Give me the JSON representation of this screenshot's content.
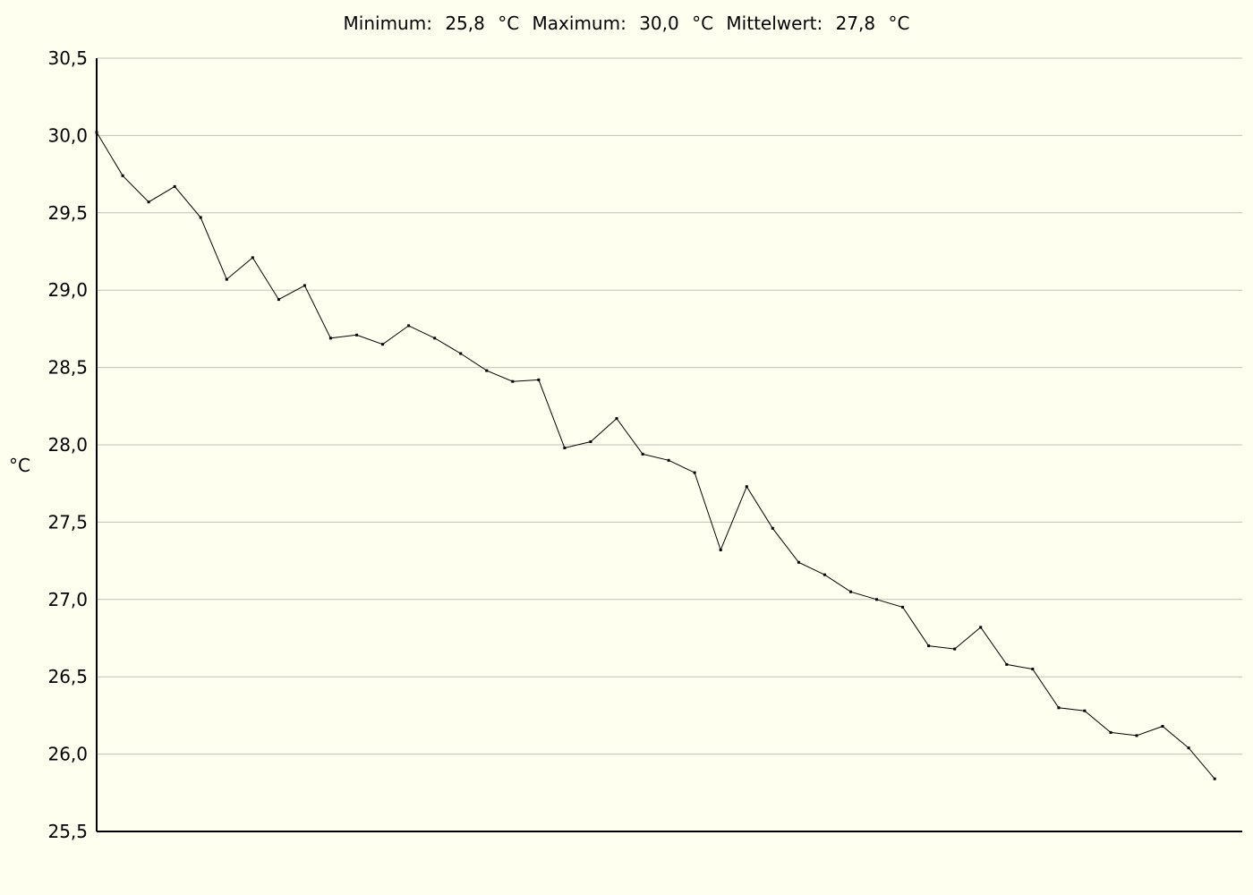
{
  "header": {
    "min_label": "Minimum:",
    "min_value": "25,8",
    "min_unit": "°C",
    "max_label": "Maximum:",
    "max_value": "30,0",
    "max_unit": "°C",
    "mean_label": "Mittelwert:",
    "mean_value": "27,8",
    "mean_unit": "°C"
  },
  "chart_data": {
    "type": "line",
    "ylabel": "°C",
    "xlabel": "",
    "ylim": [
      25.5,
      30.5
    ],
    "y_ticks": [
      "25,5",
      "26,0",
      "26,5",
      "27,0",
      "27,5",
      "28,0",
      "28,5",
      "29,0",
      "29,5",
      "30,0",
      "30,5"
    ],
    "grid": true,
    "series": [
      {
        "values": [
          30.02,
          29.74,
          29.57,
          29.67,
          29.47,
          29.07,
          29.21,
          28.94,
          29.03,
          28.69,
          28.71,
          28.65,
          28.77,
          28.69,
          28.59,
          28.48,
          28.41,
          28.42,
          27.98,
          28.02,
          28.17,
          27.94,
          27.9,
          27.82,
          27.32,
          27.73,
          27.46,
          27.24,
          27.16,
          27.05,
          27.0,
          26.95,
          26.7,
          26.68,
          26.82,
          26.58,
          26.55,
          26.3,
          26.28,
          26.14,
          26.12,
          26.18,
          26.04,
          25.84
        ]
      }
    ]
  }
}
